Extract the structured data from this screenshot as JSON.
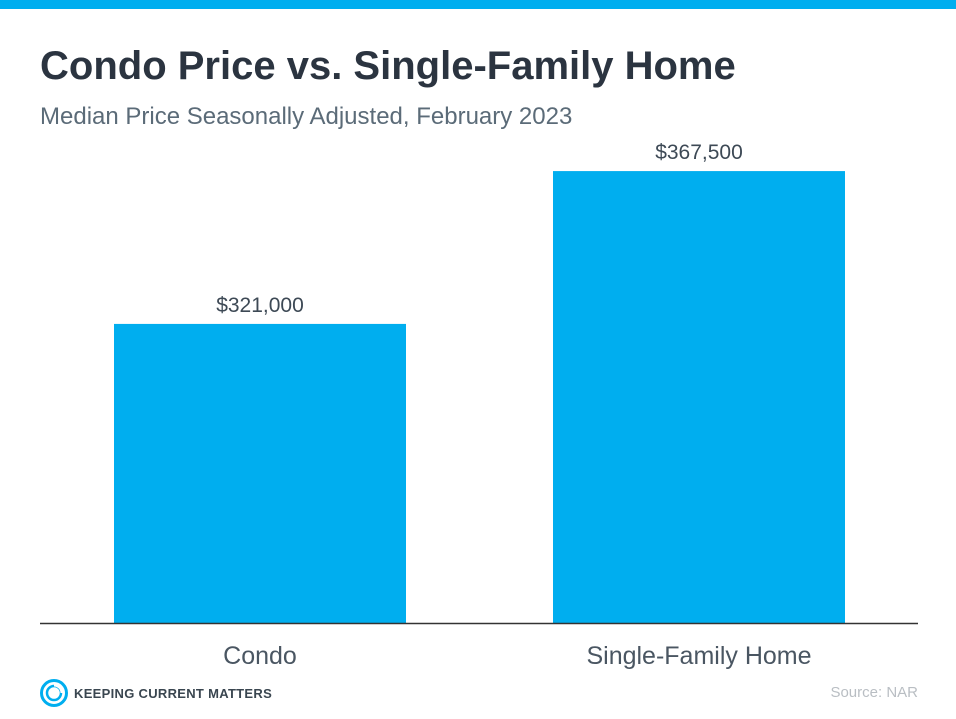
{
  "header": {
    "title": "Condo Price vs. Single-Family Home",
    "subtitle": "Median Price Seasonally Adjusted, February 2023"
  },
  "chart_data": {
    "type": "bar",
    "title": "Condo Price vs. Single-Family Home",
    "subtitle": "Median Price Seasonally Adjusted, February 2023",
    "categories": [
      "Condo",
      "Single-Family Home"
    ],
    "values": [
      321000,
      367500
    ],
    "data_labels": [
      "$321,000",
      "$367,500"
    ],
    "xlabel": "",
    "ylabel": "",
    "ylim": [
      230000,
      380000
    ],
    "grid": false,
    "legend": "none",
    "bar_color": "#00aeef"
  },
  "footer": {
    "logo_text": "KEEPING CURRENT MATTERS",
    "source": "Source: NAR"
  },
  "colors": {
    "accent": "#00aeef",
    "title": "#2b3440",
    "subtitle": "#5b6b78",
    "axis": "#333333",
    "source": "#b9bec3"
  }
}
